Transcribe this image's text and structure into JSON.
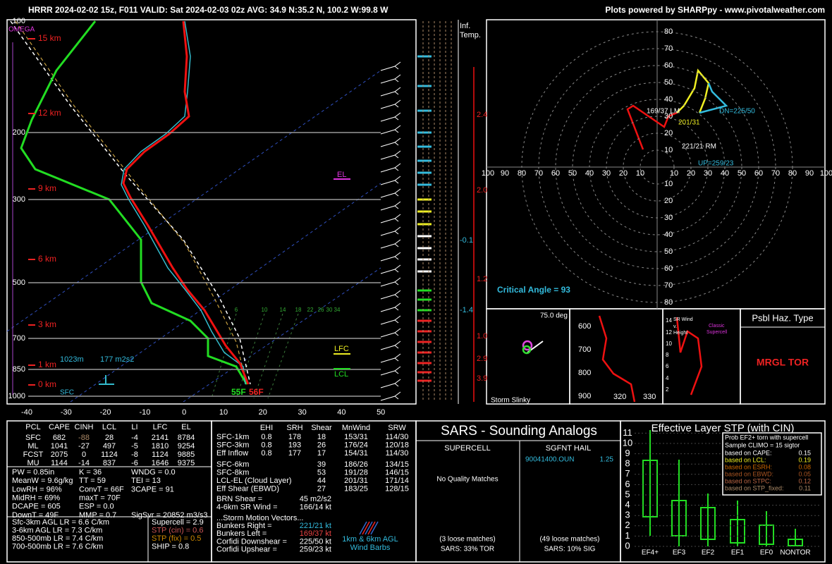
{
  "header": {
    "title": "HRRR 2024-02-02 15z, F011  VALID: Sat 2024-02-03 02z  AVG: 34.9 N:35.2 N, 100.2 W:99.8 W",
    "credit": "Plots powered by SHARPpy - www.pivotalweather.com"
  },
  "skewt": {
    "pressure_labels": [
      "100",
      "200",
      "300",
      "500",
      "700",
      "850",
      "1000"
    ],
    "temp_labels": [
      "-40",
      "-30",
      "-20",
      "-10",
      "0",
      "10",
      "20",
      "30",
      "40",
      "50"
    ],
    "height_labels": [
      "15 km",
      "12 km",
      "9 km",
      "6 km",
      "3 km",
      "1 km",
      "0 km"
    ],
    "mix_labels": [
      "6",
      "10",
      "14",
      "18",
      "22",
      "26",
      "30",
      "34"
    ],
    "omega": "OMEGA",
    "el": "EL",
    "lfc": "LFC",
    "lcl": "LCL",
    "sfc": "SFC",
    "inflow_depth": "1023m",
    "inflow_srh": "177 m2s2",
    "sfc_dew": "55F",
    "sfc_temp": "56F"
  },
  "inferred_temp": {
    "title": [
      "Inf.",
      "Temp."
    ],
    "red_labels": [
      "2.4",
      "2.0",
      "1.2",
      "1.0",
      "2.9",
      "3.9"
    ],
    "blue_labels": [
      "-0.1",
      "-1.4"
    ]
  },
  "hodograph": {
    "ring_labels": [
      10,
      20,
      30,
      40,
      50,
      60,
      70,
      80,
      90,
      100
    ],
    "motions": [
      "169/37 LM",
      "201/31",
      "221/21 RM",
      "DN=225/50",
      "UP=259/23"
    ],
    "critical_angle": "Critical Angle = 93"
  },
  "slinky": {
    "angle": "75.0 deg",
    "label": "Storm Slinky"
  },
  "theta": {
    "pressure": [
      "600",
      "700",
      "800",
      "900"
    ],
    "x": [
      "320",
      "330"
    ]
  },
  "sr_wind": {
    "title": [
      "SR Wind",
      "v.",
      "Height"
    ],
    "note": [
      "Classic",
      "Supercell"
    ],
    "heights": [
      "14",
      "12",
      "10",
      "8",
      "6",
      "4",
      "2"
    ]
  },
  "hazard": {
    "title": "Psbl Haz. Type",
    "value": "MRGL TOR"
  },
  "parcels": {
    "headers": [
      "PCL",
      "CAPE",
      "CINH",
      "LCL",
      "LI",
      "LFC",
      "EL"
    ],
    "rows": [
      [
        "SFC",
        "682",
        "-88",
        "28",
        "-4",
        "2141",
        "8784"
      ],
      [
        "ML",
        "1041",
        "-27",
        "497",
        "-5",
        "1810",
        "9254"
      ],
      [
        "FCST",
        "2075",
        "0",
        "1124",
        "-8",
        "1124",
        "9885"
      ],
      [
        "MU",
        "1144",
        "-14",
        "837",
        "-6",
        "1646",
        "9375"
      ]
    ]
  },
  "indices": [
    [
      "PW = 0.85in",
      "K = 36",
      "WNDG = 0.0"
    ],
    [
      "MeanW = 9.6g/kg",
      "TT = 59",
      "TEI = 13"
    ],
    [
      "LowRH = 96%",
      "ConvT = 66F",
      "3CAPE = 91"
    ],
    [
      "MidRH = 69%",
      "maxT = 70F"
    ],
    [
      "DCAPE = 605",
      "ESP = 0.0"
    ],
    [
      "DownT = 49F",
      "MMP = 0.7",
      "SigSvr = 20852 m3/s3"
    ]
  ],
  "lapse_rates": [
    "Sfc-3km AGL LR = 6.6 C/km",
    "3-6km AGL LR = 7.3 C/km",
    "850-500mb LR = 7.4 C/km",
    "700-500mb LR = 7.6 C/km"
  ],
  "composites": [
    "Supercell = 2.9",
    "STP (cin) = 0.6",
    "STP (fix) = 0.5",
    "SHIP = 0.8"
  ],
  "kinematics": {
    "headers": [
      "EHI",
      "SRH",
      "Shear",
      "MnWind",
      "SRW"
    ],
    "rows_full": [
      [
        "SFC-1km",
        "0.8",
        "178",
        "18",
        "153/31",
        "114/30"
      ],
      [
        "SFC-3km",
        "0.8",
        "193",
        "26",
        "176/24",
        "120/18"
      ],
      [
        "Eff Inflow",
        "0.8",
        "177",
        "17",
        "154/31",
        "114/30"
      ]
    ],
    "rows_shear": [
      [
        "SFC-6km",
        "39",
        "186/26",
        "134/15"
      ],
      [
        "SFC-8km",
        "53",
        "191/28",
        "146/15"
      ],
      [
        "LCL-EL (Cloud Layer)",
        "44",
        "201/31",
        "171/14"
      ],
      [
        "Eff Shear (EBWD)",
        "27",
        "183/25",
        "128/15"
      ]
    ],
    "extra": [
      [
        "BRN Shear =",
        "45 m2/s2"
      ],
      [
        "4-6km SR Wind =",
        "166/14 kt"
      ]
    ],
    "motion_title": "...Storm Motion Vectors...",
    "motions": [
      [
        "Bunkers Right =",
        "221/21 kt"
      ],
      [
        "Bunkers Left =",
        "169/37 kt"
      ],
      [
        "Corfidi Downshear =",
        "225/50 kt"
      ],
      [
        "Corfidi Upshear =",
        "259/23 kt"
      ]
    ],
    "barbs_label": [
      "1km & 6km AGL",
      "Wind Barbs"
    ]
  },
  "sars": {
    "title": "SARS - Sounding Analogs",
    "supercell": {
      "title": "SUPERCELL",
      "match": "No Quality Matches",
      "loose": "(3 loose matches)",
      "pct": "SARS: 33% TOR"
    },
    "hail": {
      "title": "SGFNT HAIL",
      "match": "90041400.OUN",
      "size": "1.25",
      "loose": "(49 loose matches)",
      "pct": "SARS: 10% SIG"
    }
  },
  "stp": {
    "title": "Effective Layer STP (with CIN)",
    "yticks": [
      0,
      1,
      2,
      3,
      4,
      5,
      6,
      7,
      8,
      9,
      10,
      11
    ],
    "categories": [
      "EF4+",
      "EF3",
      "EF2",
      "EF1",
      "EF0",
      "NONTOR"
    ],
    "legend_title": [
      "Prob EF2+ torn with supercell",
      "Sample CLIMO = 15 sigtor"
    ],
    "legend": [
      [
        "based on CAPE:",
        "0.15"
      ],
      [
        "based on LCL:",
        "0.19"
      ],
      [
        "based on ESRH:",
        "0.08"
      ],
      [
        "based on EBWD:",
        "0.05"
      ],
      [
        "based on STPC:",
        "0.12"
      ],
      [
        "based on STP_fixed:",
        "0.11"
      ]
    ]
  }
}
